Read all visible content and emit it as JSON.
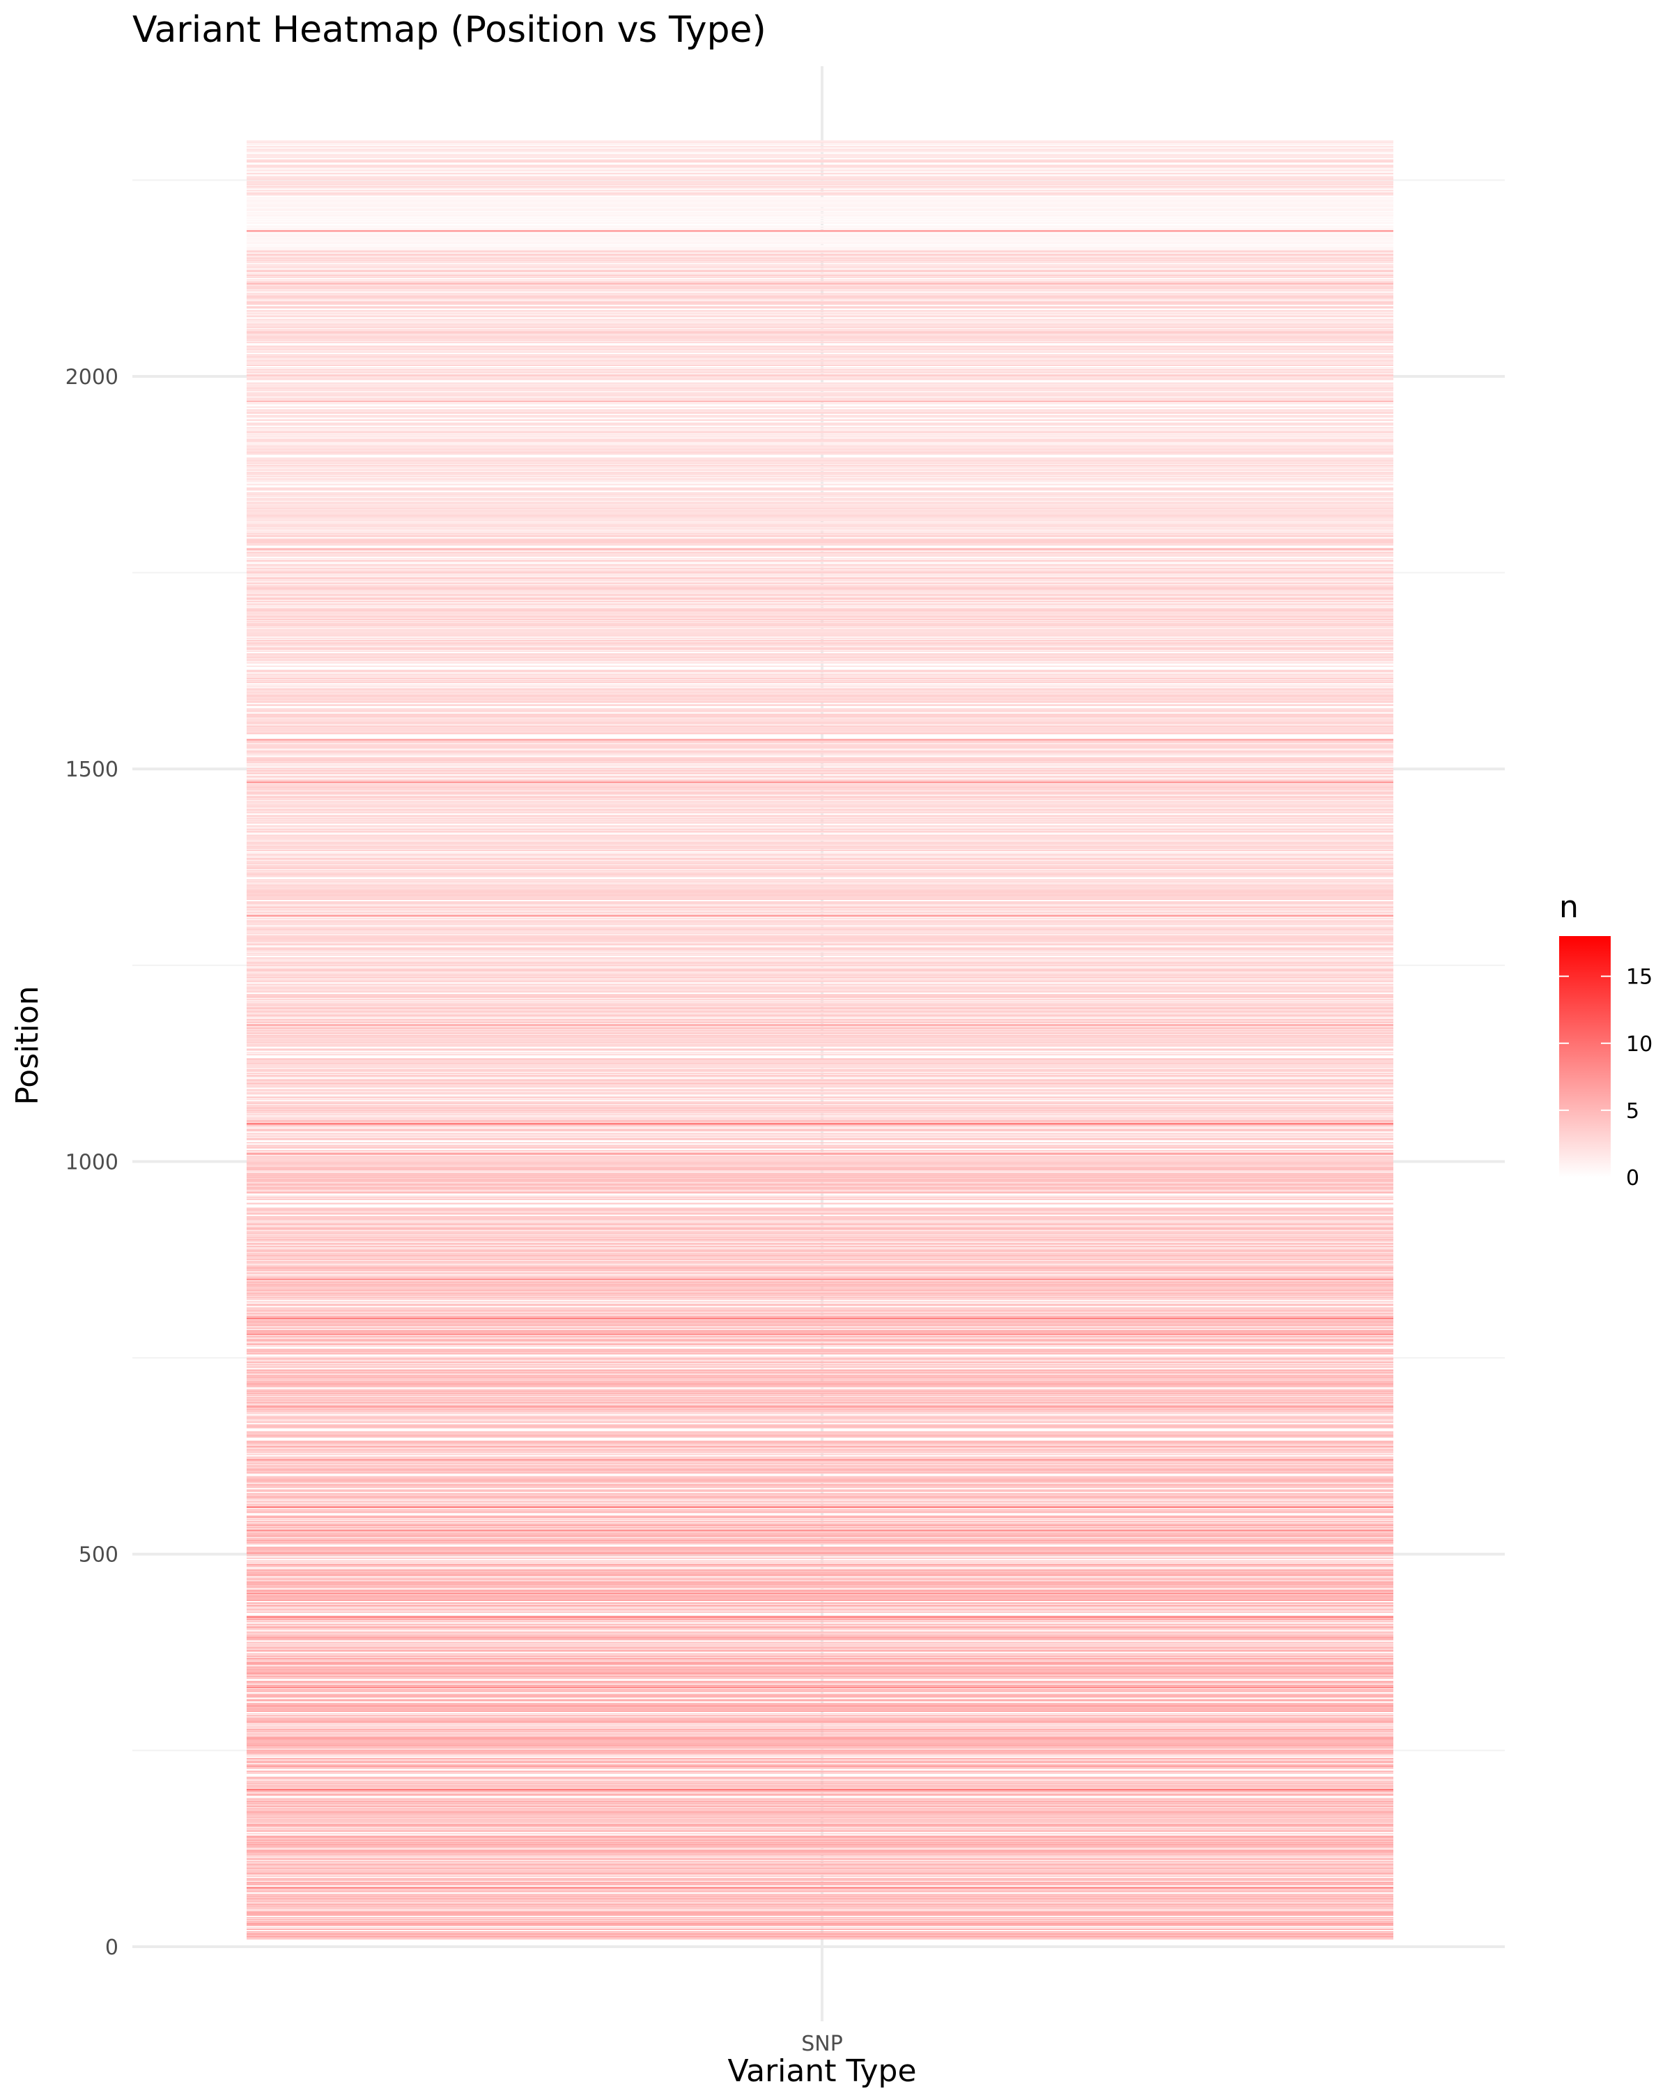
{
  "chart_data": {
    "type": "heatmap",
    "title": "Variant Heatmap (Position vs Type)",
    "xlabel": "Variant Type",
    "ylabel": "Position",
    "categories": [
      "SNP"
    ],
    "y_ticks": [
      "0",
      "500",
      "1000",
      "1500",
      "2000"
    ],
    "y_tick_values": [
      0,
      500,
      1000,
      1500,
      2000
    ],
    "ylim": [
      -95,
      2395
    ],
    "y_range_data": [
      10,
      2300
    ],
    "bin_width": 1,
    "legend": {
      "title": "n",
      "ticks": [
        "0",
        "5",
        "10",
        "15"
      ],
      "tick_values": [
        0,
        5,
        10,
        15
      ],
      "range": [
        0,
        18
      ],
      "placement": "right",
      "low_color": "#ffffff",
      "high_color": "#ff0000"
    },
    "grid": true,
    "hotspots": [
      {
        "position": 2185,
        "n": 9
      },
      {
        "position": 2118,
        "n": 6
      },
      {
        "position": 1968,
        "n": 6
      },
      {
        "position": 1780,
        "n": 6
      },
      {
        "position": 1537,
        "n": 8
      },
      {
        "position": 1483,
        "n": 9
      },
      {
        "position": 1313,
        "n": 9
      },
      {
        "position": 1174,
        "n": 7
      },
      {
        "position": 1048,
        "n": 12
      },
      {
        "position": 1010,
        "n": 8
      },
      {
        "position": 850,
        "n": 9
      },
      {
        "position": 800,
        "n": 12
      },
      {
        "position": 780,
        "n": 10
      },
      {
        "position": 688,
        "n": 8
      },
      {
        "position": 620,
        "n": 9
      },
      {
        "position": 560,
        "n": 11
      },
      {
        "position": 530,
        "n": 9
      },
      {
        "position": 450,
        "n": 9
      },
      {
        "position": 420,
        "n": 11
      },
      {
        "position": 330,
        "n": 10
      },
      {
        "position": 300,
        "n": 8
      },
      {
        "position": 230,
        "n": 8
      },
      {
        "position": 200,
        "n": 12
      },
      {
        "position": 75,
        "n": 10
      },
      {
        "position": 30,
        "n": 7
      }
    ],
    "density_profile": [
      {
        "from": 2300,
        "to": 2230,
        "mean_n": 2
      },
      {
        "from": 2230,
        "to": 2160,
        "mean_n": 0.6
      },
      {
        "from": 2160,
        "to": 2000,
        "mean_n": 2.5
      },
      {
        "from": 2000,
        "to": 1800,
        "mean_n": 2
      },
      {
        "from": 1800,
        "to": 1600,
        "mean_n": 2.5
      },
      {
        "from": 1600,
        "to": 1200,
        "mean_n": 2.5
      },
      {
        "from": 1200,
        "to": 1000,
        "mean_n": 3
      },
      {
        "from": 1000,
        "to": 850,
        "mean_n": 3.5
      },
      {
        "from": 850,
        "to": 550,
        "mean_n": 4
      },
      {
        "from": 550,
        "to": 10,
        "mean_n": 4.5
      }
    ]
  }
}
